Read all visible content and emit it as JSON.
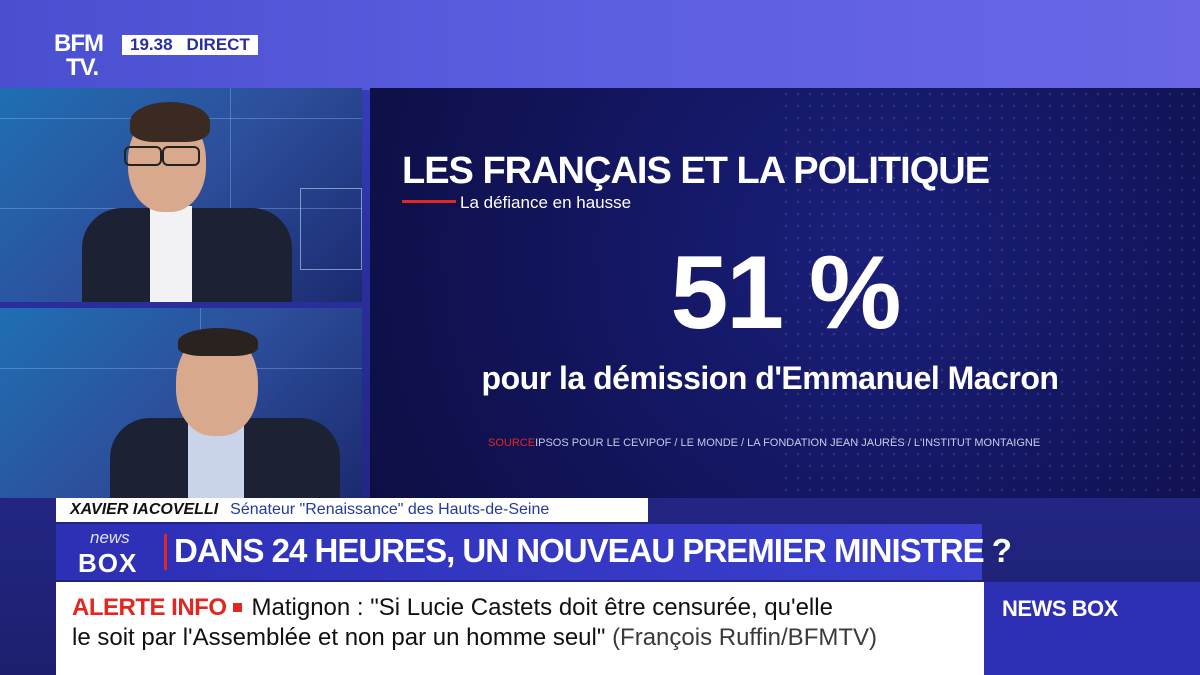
{
  "channel": {
    "logo_line1": "BFM",
    "logo_line2": "TV.",
    "time": "19.38",
    "live_label": "DIRECT"
  },
  "graphic": {
    "title": "LES FRANÇAIS ET LA POLITIQUE",
    "subtitle": "La défiance en hausse",
    "figure": "51 %",
    "caption": "pour la démission d'Emmanuel Macron",
    "source_label": "SOURCE",
    "source_text": "IPSOS POUR LE CEVIPOF / LE MONDE / LA FONDATION JEAN JAURÈS / L'INSTITUT MONTAIGNE"
  },
  "lower_third": {
    "name": "XAVIER IACOVELLI",
    "role": "Sénateur \"Renaissance\" des Hauts-de-Seine"
  },
  "headline": {
    "show_news": "news",
    "show_box": "BOX",
    "text": "DANS 24 HEURES, UN NOUVEAU PREMIER MINISTRE ?"
  },
  "ticker": {
    "alert_label": "ALERTE INFO",
    "line1": "Matignon : \"Si Lucie Castets doit être censurée, qu'elle",
    "line2": "le soit par l'Assemblée et non par un homme seul\"",
    "attribution": "(François Ruffin/BFMTV)"
  },
  "side_brand": "NEWS BOX",
  "colors": {
    "accent_red": "#e3261f",
    "brand_blue": "#2d2fb5"
  }
}
